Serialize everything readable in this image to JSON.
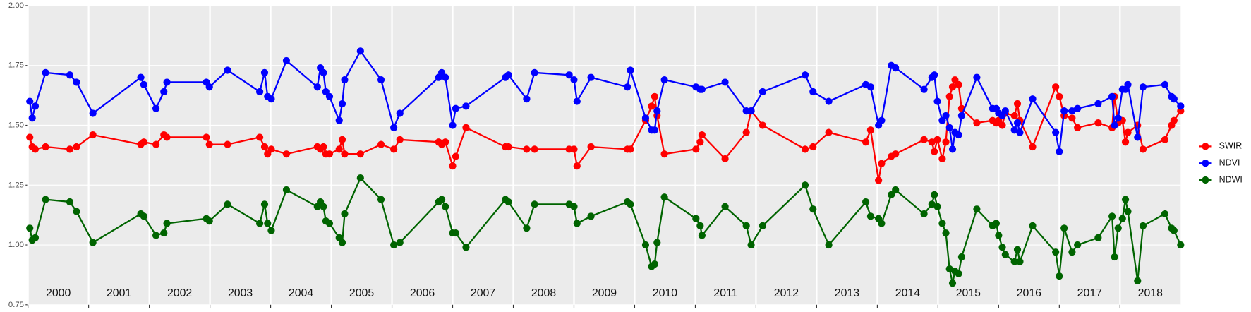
{
  "chart_data": {
    "type": "line",
    "x": [
      2000.03,
      2000.07,
      2000.12,
      2000.29,
      2000.69,
      2000.8,
      2001.07,
      2001.86,
      2001.91,
      2002.11,
      2002.24,
      2002.29,
      2002.94,
      2002.99,
      2003.29,
      2003.82,
      2003.9,
      2003.95,
      2004.01,
      2004.26,
      2004.77,
      2004.82,
      2004.87,
      2004.91,
      2004.97,
      2005.13,
      2005.18,
      2005.22,
      2005.48,
      2005.82,
      2006.03,
      2006.13,
      2006.77,
      2006.82,
      2006.88,
      2007.0,
      2007.05,
      2007.22,
      2007.87,
      2007.92,
      2008.22,
      2008.35,
      2008.92,
      2009.0,
      2009.05,
      2009.28,
      2009.88,
      2009.93,
      2010.18,
      2010.28,
      2010.33,
      2010.37,
      2010.49,
      2011.01,
      2011.08,
      2011.11,
      2011.49,
      2011.84,
      2011.92,
      2012.11,
      2012.81,
      2012.94,
      2013.2,
      2013.81,
      2013.89,
      2014.02,
      2014.07,
      2014.23,
      2014.3,
      2014.77,
      2014.9,
      2014.94,
      2014.99,
      2015.07,
      2015.13,
      2015.19,
      2015.24,
      2015.28,
      2015.34,
      2015.39,
      2015.64,
      2015.9,
      2015.96,
      2016.0,
      2016.06,
      2016.11,
      2016.26,
      2016.31,
      2016.35,
      2016.56,
      2016.94,
      2017.0,
      2017.08,
      2017.21,
      2017.3,
      2017.64,
      2017.87,
      2017.91,
      2017.97,
      2018.04,
      2018.09,
      2018.13,
      2018.29,
      2018.38,
      2018.74,
      2018.85,
      2018.89,
      2019.0
    ],
    "series": [
      {
        "name": "SWIR",
        "color": "#ff0000",
        "values": [
          1.45,
          1.41,
          1.4,
          1.41,
          1.4,
          1.41,
          1.46,
          1.42,
          1.43,
          1.42,
          1.46,
          1.45,
          1.45,
          1.42,
          1.42,
          1.45,
          1.41,
          1.38,
          1.4,
          1.38,
          1.41,
          1.4,
          1.41,
          1.38,
          1.38,
          1.4,
          1.44,
          1.38,
          1.38,
          1.42,
          1.4,
          1.44,
          1.43,
          1.42,
          1.43,
          1.33,
          1.37,
          1.49,
          1.41,
          1.41,
          1.4,
          1.4,
          1.4,
          1.4,
          1.33,
          1.41,
          1.4,
          1.4,
          1.52,
          1.58,
          1.62,
          1.54,
          1.38,
          1.4,
          1.43,
          1.46,
          1.36,
          1.47,
          1.56,
          1.5,
          1.4,
          1.41,
          1.47,
          1.43,
          1.48,
          1.27,
          1.34,
          1.37,
          1.38,
          1.44,
          1.43,
          1.39,
          1.44,
          1.36,
          1.43,
          1.62,
          1.66,
          1.69,
          1.67,
          1.57,
          1.51,
          1.52,
          1.51,
          1.52,
          1.5,
          1.55,
          1.54,
          1.59,
          1.52,
          1.41,
          1.66,
          1.62,
          1.54,
          1.53,
          1.49,
          1.51,
          1.49,
          1.62,
          1.51,
          1.52,
          1.43,
          1.47,
          1.5,
          1.4,
          1.44,
          1.5,
          1.52,
          1.56
        ]
      },
      {
        "name": "NDVI",
        "color": "#0000ff",
        "values": [
          1.6,
          1.53,
          1.58,
          1.72,
          1.71,
          1.68,
          1.55,
          1.7,
          1.67,
          1.57,
          1.64,
          1.68,
          1.68,
          1.66,
          1.73,
          1.64,
          1.72,
          1.62,
          1.61,
          1.77,
          1.66,
          1.74,
          1.72,
          1.64,
          1.62,
          1.52,
          1.59,
          1.69,
          1.81,
          1.69,
          1.49,
          1.55,
          1.7,
          1.72,
          1.7,
          1.5,
          1.57,
          1.58,
          1.7,
          1.71,
          1.61,
          1.72,
          1.71,
          1.69,
          1.6,
          1.7,
          1.66,
          1.73,
          1.53,
          1.48,
          1.48,
          1.56,
          1.69,
          1.66,
          1.65,
          1.65,
          1.68,
          1.56,
          1.56,
          1.64,
          1.71,
          1.64,
          1.6,
          1.67,
          1.66,
          1.5,
          1.52,
          1.75,
          1.74,
          1.65,
          1.7,
          1.71,
          1.6,
          1.52,
          1.54,
          1.49,
          1.4,
          1.47,
          1.46,
          1.54,
          1.7,
          1.57,
          1.57,
          1.55,
          1.54,
          1.56,
          1.48,
          1.51,
          1.47,
          1.61,
          1.47,
          1.39,
          1.56,
          1.56,
          1.57,
          1.59,
          1.62,
          1.5,
          1.53,
          1.65,
          1.65,
          1.67,
          1.45,
          1.66,
          1.67,
          1.62,
          1.61,
          1.58
        ]
      },
      {
        "name": "NDWI",
        "color": "#006400",
        "values": [
          1.07,
          1.02,
          1.03,
          1.19,
          1.18,
          1.14,
          1.01,
          1.13,
          1.12,
          1.04,
          1.05,
          1.09,
          1.11,
          1.1,
          1.17,
          1.09,
          1.17,
          1.09,
          1.06,
          1.23,
          1.16,
          1.18,
          1.16,
          1.1,
          1.09,
          1.03,
          1.01,
          1.13,
          1.28,
          1.19,
          1.0,
          1.01,
          1.18,
          1.19,
          1.16,
          1.05,
          1.05,
          0.99,
          1.19,
          1.18,
          1.07,
          1.17,
          1.17,
          1.16,
          1.09,
          1.12,
          1.18,
          1.17,
          1.0,
          0.91,
          0.92,
          1.01,
          1.2,
          1.11,
          1.08,
          1.04,
          1.16,
          1.08,
          1.0,
          1.08,
          1.25,
          1.15,
          1.0,
          1.18,
          1.12,
          1.11,
          1.09,
          1.21,
          1.23,
          1.13,
          1.17,
          1.21,
          1.16,
          1.09,
          1.05,
          0.9,
          0.84,
          0.89,
          0.88,
          0.95,
          1.15,
          1.08,
          1.09,
          1.04,
          0.99,
          0.96,
          0.93,
          0.98,
          0.93,
          1.08,
          0.97,
          0.87,
          1.07,
          0.97,
          1.0,
          1.03,
          1.12,
          0.95,
          1.07,
          1.11,
          1.19,
          1.14,
          0.85,
          1.08,
          1.13,
          1.07,
          1.06,
          1.0
        ]
      }
    ],
    "xlim": [
      2000,
      2019
    ],
    "xticks": [
      2000,
      2001,
      2002,
      2003,
      2004,
      2005,
      2006,
      2007,
      2008,
      2009,
      2010,
      2011,
      2012,
      2013,
      2014,
      2015,
      2016,
      2017,
      2018
    ],
    "ylim": [
      0.75,
      2.0
    ],
    "yticks": [
      0.75,
      {
        "value": 1.0,
        "label": "1.00"
      },
      1.25,
      {
        "value": 1.5,
        "label": "1.50"
      },
      1.75,
      {
        "value": 2.0,
        "label": "2.00"
      }
    ],
    "grid": true,
    "legend": "right"
  }
}
